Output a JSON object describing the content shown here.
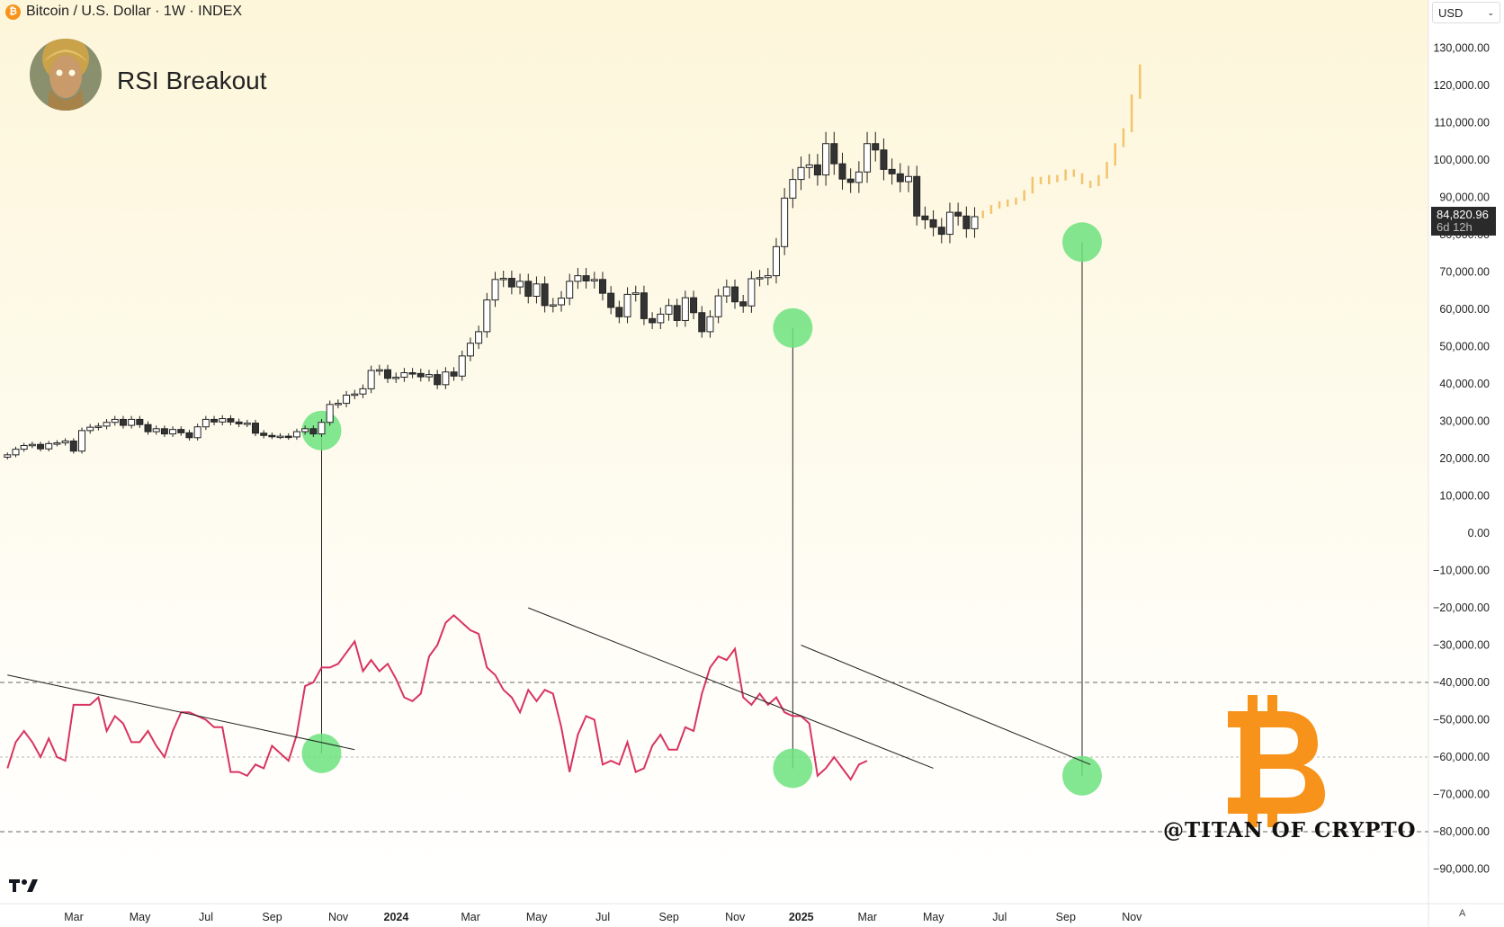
{
  "header": {
    "symbol": "Bitcoin / U.S. Dollar · 1W · INDEX",
    "indicator_title": "RSI Breakout",
    "currency": "USD",
    "last_price": "84,820.96",
    "countdown": "6d 12h",
    "watermark": "@TITAN OF CRYPTO"
  },
  "colors": {
    "background_top": "#fdf6da",
    "background_bottom": "#ffffff",
    "rsi_line": "#d8345f",
    "highlight": "#6de37f",
    "projection": "#f2c46e",
    "bull_body": "#ffffff",
    "bear_body": "#333333",
    "bitcoin_logo": "#f7931a"
  },
  "chart_data": {
    "type": "candlestick",
    "title": "RSI Breakout",
    "timeframe": "1W",
    "y_axis": {
      "ylim": [
        -95000,
        135000
      ],
      "tick_labels": [
        "130,000.00",
        "120,000.00",
        "110,000.00",
        "100,000.00",
        "90,000.00",
        "80,000.00",
        "70,000.00",
        "60,000.00",
        "50,000.00",
        "40,000.00",
        "30,000.00",
        "20,000.00",
        "10,000.00",
        "0.00",
        "−10,000.00",
        "−20,000.00",
        "−30,000.00",
        "−40,000.00",
        "−50,000.00",
        "−60,000.00",
        "−70,000.00",
        "−80,000.00",
        "−90,000.00"
      ],
      "tick_values": [
        130000,
        120000,
        110000,
        100000,
        90000,
        80000,
        70000,
        60000,
        50000,
        40000,
        30000,
        20000,
        10000,
        0,
        -10000,
        -20000,
        -30000,
        -40000,
        -50000,
        -60000,
        -70000,
        -80000,
        -90000
      ]
    },
    "x_axis": {
      "tick_labels": [
        "Mar",
        "May",
        "Jul",
        "Sep",
        "Nov",
        "2024",
        "Mar",
        "May",
        "Jul",
        "Sep",
        "Nov",
        "2025",
        "Mar",
        "May",
        "Jul",
        "Sep",
        "Nov"
      ],
      "tick_bold": [
        false,
        false,
        false,
        false,
        false,
        true,
        false,
        false,
        false,
        false,
        false,
        true,
        false,
        false,
        false,
        false,
        false
      ],
      "tick_bar_index": [
        0,
        8,
        16,
        24,
        32,
        39,
        48,
        56,
        64,
        72,
        80,
        88,
        96,
        104,
        112,
        120,
        128
      ]
    },
    "price_series": {
      "name": "BTCUSD",
      "closes": [
        21000,
        22500,
        23500,
        23800,
        22600,
        24000,
        24200,
        24700,
        22000,
        27500,
        28400,
        28700,
        29700,
        30500,
        28900,
        30500,
        29100,
        27200,
        28000,
        26600,
        27800,
        26900,
        25600,
        28500,
        30500,
        29800,
        30700,
        29800,
        29300,
        29500,
        26800,
        26200,
        26000,
        26000,
        25800,
        27200,
        28000,
        26600,
        29700,
        34500,
        34800,
        37000,
        37300,
        38700,
        43600,
        43800,
        41500,
        41800,
        43000,
        42800,
        41900,
        42500,
        39800,
        43200,
        42100,
        47500,
        50900,
        54000,
        62500,
        68000,
        68300,
        66000,
        67500,
        63500,
        66800,
        61000,
        61200,
        63000,
        67500,
        69000,
        67600,
        68000,
        64300,
        60500,
        58000,
        64000,
        64400,
        57500,
        56400,
        58700,
        61000,
        57000,
        63100,
        59100,
        54000,
        58000,
        63600,
        66000,
        62000,
        60900,
        68200,
        68500,
        69000,
        76800,
        89800,
        94800,
        98000,
        98700,
        96000,
        104400,
        99000,
        94900,
        94000,
        96800,
        104400,
        102700,
        97500,
        96300,
        94200,
        95600,
        85000,
        84000,
        82000,
        80100,
        86000,
        85000,
        81600,
        84820
      ],
      "projection_closes": [
        86000,
        87500,
        88500,
        89000,
        89500,
        91500,
        95000,
        94000,
        95500,
        95000,
        97000,
        96000,
        94000,
        93500,
        95500,
        99000,
        104000,
        108000,
        117000,
        125000
      ]
    },
    "rsi_series": {
      "name": "RSI",
      "values": [
        -63000,
        -56000,
        -53000,
        -56000,
        -60000,
        -55000,
        -60000,
        -61000,
        -46000,
        -46000,
        -46000,
        -44000,
        -53000,
        -49000,
        -51000,
        -56000,
        -56000,
        -53000,
        -57000,
        -60000,
        -53000,
        -48000,
        -48000,
        -49000,
        -50000,
        -52000,
        -52000,
        -64000,
        -64000,
        -65000,
        -62000,
        -63000,
        -57000,
        -59000,
        -61000,
        -54000,
        -41000,
        -40000,
        -36000,
        -36000,
        -35000,
        -32000,
        -29000,
        -37000,
        -34000,
        -37000,
        -35000,
        -39000,
        -44000,
        -45000,
        -43000,
        -33000,
        -30000,
        -24000,
        -22000,
        -24000,
        -26000,
        -27000,
        -36000,
        -38000,
        -42000,
        -44000,
        -48000,
        -42000,
        -45000,
        -42000,
        -43000,
        -52000,
        -64000,
        -54000,
        -49000,
        -50000,
        -62000,
        -61000,
        -62000,
        -56000,
        -64000,
        -63000,
        -57000,
        -54000,
        -58000,
        -58000,
        -52000,
        -53000,
        -43000,
        -36000,
        -33000,
        -34000,
        -31000,
        -44000,
        -46000,
        -43000,
        -46000,
        -44000,
        -48000,
        -49000,
        -49000,
        -51000,
        -65000,
        -63000,
        -60000,
        -63000,
        -66000,
        -62000,
        -61000
      ]
    },
    "trendlines": [
      {
        "from": [
          0,
          -38000
        ],
        "to": [
          42,
          -58000
        ],
        "series": "rsi"
      },
      {
        "from": [
          63,
          -20000
        ],
        "to": [
          112,
          -63000
        ],
        "series": "rsi"
      },
      {
        "from": [
          96,
          -30000
        ],
        "to": [
          131,
          -62000
        ],
        "series": "rsi"
      }
    ],
    "breakout_markers": [
      {
        "bar": 38,
        "price": 27500,
        "rsi": -59000
      },
      {
        "bar": 95,
        "price": 55000,
        "rsi": -63000
      },
      {
        "bar": 130,
        "price": 78000,
        "rsi": -65000
      }
    ],
    "reference_lines": [
      -40000,
      -60000,
      -80000
    ]
  }
}
